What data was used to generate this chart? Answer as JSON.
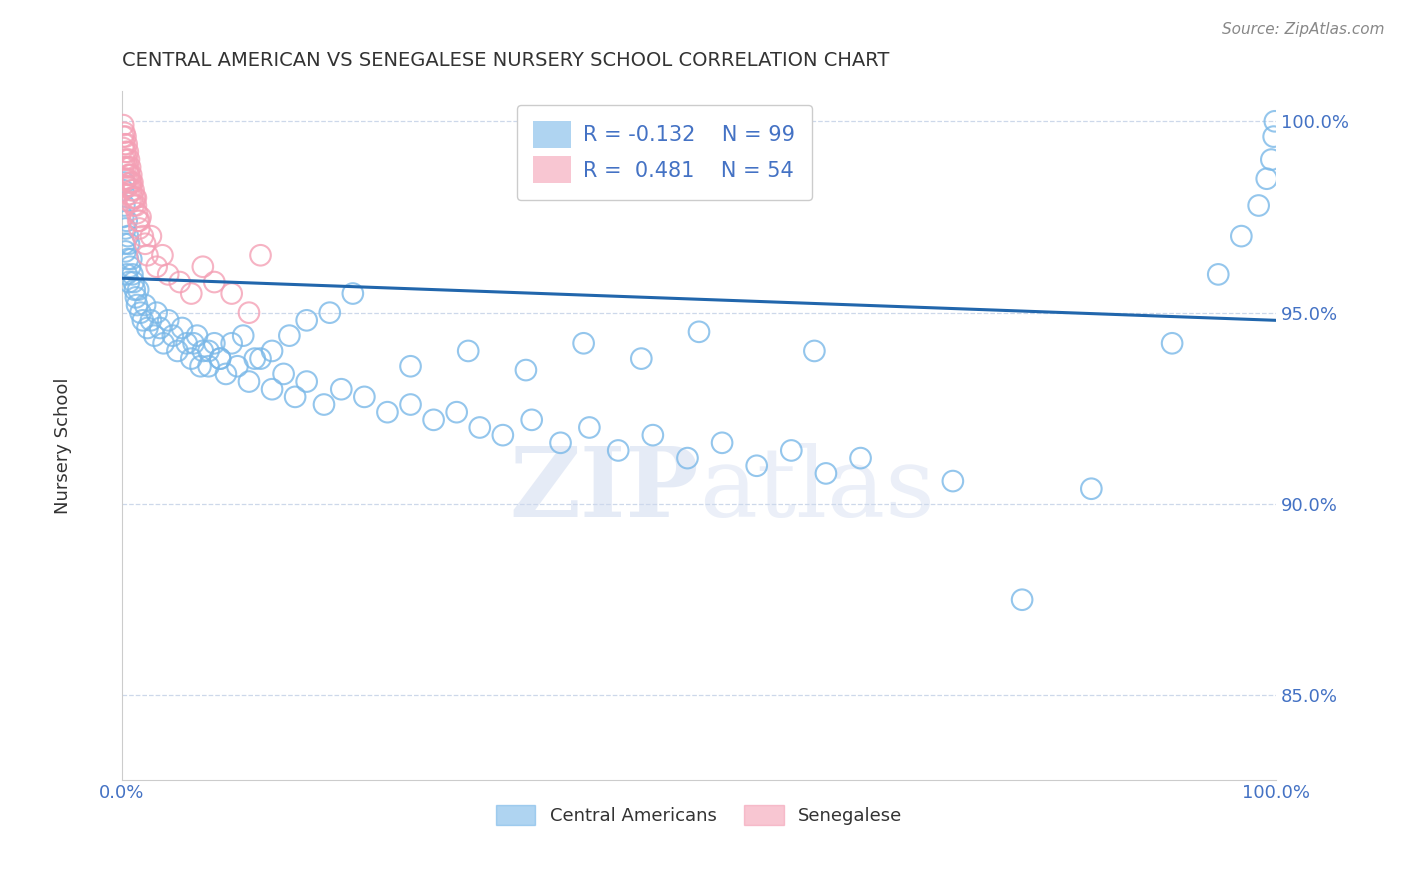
{
  "title": "CENTRAL AMERICAN VS SENEGALESE NURSERY SCHOOL CORRELATION CHART",
  "source": "Source: ZipAtlas.com",
  "ylabel": "Nursery School",
  "xlim": [
    0.0,
    1.0
  ],
  "ylim": [
    0.828,
    1.008
  ],
  "yticks": [
    0.85,
    0.9,
    0.95,
    1.0
  ],
  "ytick_labels": [
    "85.0%",
    "90.0%",
    "95.0%",
    "100.0%"
  ],
  "legend_blue_r": "-0.132",
  "legend_blue_n": "99",
  "legend_pink_r": "0.481",
  "legend_pink_n": "54",
  "blue_color": "#7ab8e8",
  "pink_color": "#f4a0b5",
  "trend_color": "#2166ac",
  "background_color": "#ffffff",
  "grid_color": "#c8d4e8",
  "label_color": "#4472c4",
  "title_color": "#333333",
  "watermark_zip": "ZIP",
  "watermark_atlas": "atlas",
  "blue_scatter_x": [
    0.001,
    0.001,
    0.002,
    0.002,
    0.002,
    0.003,
    0.003,
    0.004,
    0.004,
    0.005,
    0.005,
    0.006,
    0.006,
    0.007,
    0.008,
    0.009,
    0.01,
    0.011,
    0.012,
    0.013,
    0.014,
    0.016,
    0.018,
    0.02,
    0.022,
    0.025,
    0.028,
    0.03,
    0.033,
    0.036,
    0.04,
    0.044,
    0.048,
    0.052,
    0.056,
    0.06,
    0.065,
    0.07,
    0.075,
    0.08,
    0.085,
    0.09,
    0.1,
    0.11,
    0.12,
    0.13,
    0.14,
    0.15,
    0.16,
    0.175,
    0.19,
    0.21,
    0.23,
    0.25,
    0.27,
    0.29,
    0.31,
    0.33,
    0.355,
    0.38,
    0.405,
    0.43,
    0.46,
    0.49,
    0.52,
    0.55,
    0.58,
    0.61,
    0.64,
    0.6,
    0.5,
    0.45,
    0.4,
    0.35,
    0.3,
    0.25,
    0.2,
    0.18,
    0.16,
    0.145,
    0.13,
    0.115,
    0.105,
    0.095,
    0.085,
    0.075,
    0.068,
    0.062,
    0.72,
    0.78,
    0.84,
    0.91,
    0.95,
    0.97,
    0.985,
    0.992,
    0.996,
    0.998,
    0.999
  ],
  "blue_scatter_y": [
    0.975,
    0.982,
    0.978,
    0.984,
    0.968,
    0.972,
    0.966,
    0.974,
    0.96,
    0.97,
    0.964,
    0.968,
    0.958,
    0.962,
    0.964,
    0.96,
    0.958,
    0.956,
    0.954,
    0.952,
    0.956,
    0.95,
    0.948,
    0.952,
    0.946,
    0.948,
    0.944,
    0.95,
    0.946,
    0.942,
    0.948,
    0.944,
    0.94,
    0.946,
    0.942,
    0.938,
    0.944,
    0.94,
    0.936,
    0.942,
    0.938,
    0.934,
    0.936,
    0.932,
    0.938,
    0.93,
    0.934,
    0.928,
    0.932,
    0.926,
    0.93,
    0.928,
    0.924,
    0.926,
    0.922,
    0.924,
    0.92,
    0.918,
    0.922,
    0.916,
    0.92,
    0.914,
    0.918,
    0.912,
    0.916,
    0.91,
    0.914,
    0.908,
    0.912,
    0.94,
    0.945,
    0.938,
    0.942,
    0.935,
    0.94,
    0.936,
    0.955,
    0.95,
    0.948,
    0.944,
    0.94,
    0.938,
    0.944,
    0.942,
    0.938,
    0.94,
    0.936,
    0.942,
    0.906,
    0.875,
    0.904,
    0.942,
    0.96,
    0.97,
    0.978,
    0.985,
    0.99,
    0.996,
    1.0
  ],
  "pink_scatter_x": [
    0.001,
    0.001,
    0.001,
    0.001,
    0.002,
    0.002,
    0.002,
    0.002,
    0.003,
    0.003,
    0.003,
    0.003,
    0.004,
    0.004,
    0.004,
    0.005,
    0.005,
    0.005,
    0.006,
    0.006,
    0.006,
    0.007,
    0.007,
    0.007,
    0.008,
    0.008,
    0.009,
    0.009,
    0.01,
    0.01,
    0.011,
    0.012,
    0.013,
    0.014,
    0.015,
    0.016,
    0.018,
    0.02,
    0.022,
    0.025,
    0.03,
    0.035,
    0.04,
    0.05,
    0.06,
    0.07,
    0.08,
    0.095,
    0.11,
    0.12,
    0.015,
    0.012,
    0.008,
    0.006
  ],
  "pink_scatter_y": [
    0.999,
    0.996,
    0.993,
    0.988,
    0.997,
    0.994,
    0.99,
    0.985,
    0.996,
    0.992,
    0.988,
    0.983,
    0.994,
    0.99,
    0.985,
    0.992,
    0.988,
    0.983,
    0.99,
    0.986,
    0.981,
    0.988,
    0.984,
    0.979,
    0.986,
    0.982,
    0.984,
    0.98,
    0.982,
    0.978,
    0.98,
    0.978,
    0.976,
    0.974,
    0.972,
    0.975,
    0.97,
    0.968,
    0.965,
    0.97,
    0.962,
    0.965,
    0.96,
    0.958,
    0.955,
    0.962,
    0.958,
    0.955,
    0.95,
    0.965,
    0.974,
    0.98,
    0.984,
    0.986
  ],
  "trend_line_x": [
    0.0,
    1.0
  ],
  "trend_line_y": [
    0.959,
    0.948
  ]
}
